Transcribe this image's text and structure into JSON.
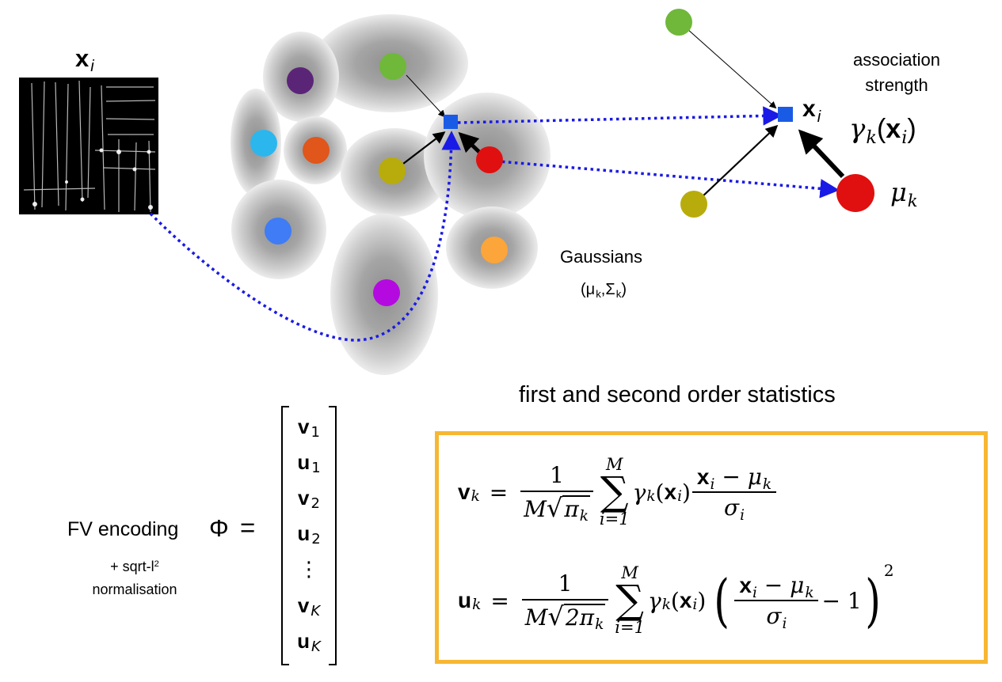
{
  "image_label": {
    "base": "x",
    "index": "i"
  },
  "gaussians_label": "Gaussians",
  "gaussians_params": {
    "mu": "μ",
    "mu_sub": "k",
    "sep": ",",
    "sigma": "Σ",
    "sigma_sub": "k"
  },
  "association_label": {
    "line1": "association",
    "line2": "strength"
  },
  "gamma_label": {
    "gamma": "γ",
    "sub": "k",
    "open": "(",
    "x": "x",
    "x_sub": "i",
    "close": ")"
  },
  "point_label": {
    "base": "x",
    "sub": "i"
  },
  "mean_label": {
    "base": "μ",
    "sub": "k"
  },
  "stats_title": "first and second order statistics",
  "fv_label": "FV encoding",
  "phi_symbol": "Φ",
  "equals": "=",
  "normalisation": {
    "line1": "+ sqrt-l",
    "sup": "2",
    "line2": "normalisation"
  },
  "vector": [
    {
      "base": "v",
      "sub": "1"
    },
    {
      "base": "u",
      "sub": "1"
    },
    {
      "base": "v",
      "sub": "2"
    },
    {
      "base": "u",
      "sub": "2"
    },
    {
      "base": "⋮",
      "sub": ""
    },
    {
      "base": "v",
      "sub": "K"
    },
    {
      "base": "u",
      "sub": "K"
    }
  ],
  "formulas": {
    "v": {
      "lhs": "v",
      "lhs_sub": "k",
      "eq": "=",
      "num": "1",
      "den_M": "M",
      "sqrt_sign": "√",
      "den_in": "π",
      "den_in_sub": "k",
      "sum_upper": "M",
      "sum_symbol": "∑",
      "sum_lower": "i=1",
      "gamma": "γ",
      "gamma_sub": "k",
      "paren_open": "(",
      "x": "x",
      "x_sub": "i",
      "paren_close": ")",
      "frac_num_x": "x",
      "frac_num_x_sub": "i",
      "frac_num_minus": " − ",
      "frac_num_mu": "μ",
      "frac_num_mu_sub": "k",
      "frac_den": "σ",
      "frac_den_sub": "i"
    },
    "u": {
      "lhs": "u",
      "lhs_sub": "k",
      "eq": "=",
      "num": "1",
      "den_M": "M",
      "sqrt_sign": "√",
      "den_in": "2π",
      "den_in_sub": "k",
      "sum_upper": "M",
      "sum_symbol": "∑",
      "sum_lower": "i=1",
      "gamma": "γ",
      "gamma_sub": "k",
      "paren_open": "(",
      "x": "x",
      "x_sub": "i",
      "paren_close": ")",
      "big_open": "(",
      "frac_num_x": "x",
      "frac_num_x_sub": "i",
      "frac_num_minus": " − ",
      "frac_num_mu": "μ",
      "frac_num_mu_sub": "k",
      "frac_den": "σ",
      "frac_den_sub": "i",
      "minus_one": "− 1",
      "big_close": ")",
      "power": "2"
    }
  },
  "colors": {
    "flow_arrow": "#1a1ae6",
    "box_border": "#f7b733",
    "gaussian_halo": "#9a9a9a",
    "descriptor": "#1a5be6",
    "purple": "#5b2577",
    "green": "#6fb83a",
    "cyan": "#2bb7ee",
    "orange_red": "#e0561b",
    "olive": "#b8ac0c",
    "red": "#e01010",
    "blue": "#3f7cf5",
    "orange": "#fba53a",
    "magenta": "#b40ae0"
  },
  "icons": [
    "image-patch-icon",
    "gaussian-blob-icon",
    "descriptor-point-icon"
  ]
}
